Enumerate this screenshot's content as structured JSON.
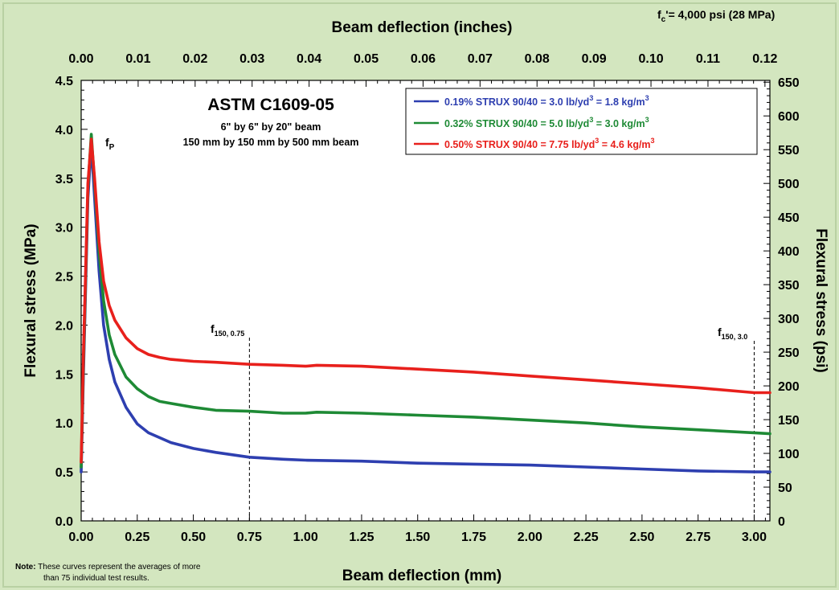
{
  "chart_data": {
    "type": "line",
    "title": "ASTM C1609-05",
    "subtitle_lines": [
      "6\" by 6\" by 20\" beam",
      "150 mm by 150 mm by 500 mm beam"
    ],
    "concrete_strength": {
      "main": "f",
      "sub": "c",
      "rest": "'= 4,000 psi (28 MPa)"
    },
    "x_bottom": {
      "label": "Beam deflection (mm)",
      "range": [
        0,
        3.07
      ],
      "ticks": [
        "0.00",
        "0.25",
        "0.50",
        "0.75",
        "1.00",
        "1.25",
        "1.50",
        "1.75",
        "2.00",
        "2.25",
        "2.50",
        "2.75",
        "3.00"
      ]
    },
    "x_top": {
      "label": "Beam deflection (inches)",
      "ticks": [
        "0.00",
        "0.01",
        "0.02",
        "0.03",
        "0.04",
        "0.05",
        "0.06",
        "0.07",
        "0.08",
        "0.09",
        "0.10",
        "0.11",
        "0.12"
      ]
    },
    "y_left": {
      "label": "Flexural stress (MPa)",
      "range": [
        0,
        4.5
      ],
      "ticks": [
        "0.0",
        "0.5",
        "1.0",
        "1.5",
        "2.0",
        "2.5",
        "3.0",
        "3.5",
        "4.0",
        "4.5"
      ]
    },
    "y_right": {
      "label": "Flexural stress (psi)",
      "ticks": [
        "0",
        "50",
        "100",
        "150",
        "200",
        "250",
        "300",
        "350",
        "400",
        "450",
        "500",
        "550",
        "600",
        "650"
      ]
    },
    "series": [
      {
        "legend": {
          "text": "0.19% STRUX 90/40 =  3.0 lb/yd",
          "sup": "3",
          "text2": " = 1.8 kg/m",
          "sup2": "3"
        },
        "color": "#2e3fb0",
        "points": [
          [
            0,
            0.5
          ],
          [
            0.01,
            1.5
          ],
          [
            0.03,
            3.3
          ],
          [
            0.045,
            3.85
          ],
          [
            0.06,
            3.3
          ],
          [
            0.08,
            2.55
          ],
          [
            0.1,
            2.0
          ],
          [
            0.125,
            1.65
          ],
          [
            0.15,
            1.42
          ],
          [
            0.2,
            1.16
          ],
          [
            0.25,
            0.99
          ],
          [
            0.3,
            0.9
          ],
          [
            0.4,
            0.8
          ],
          [
            0.5,
            0.74
          ],
          [
            0.6,
            0.7
          ],
          [
            0.75,
            0.65
          ],
          [
            0.9,
            0.63
          ],
          [
            1.0,
            0.62
          ],
          [
            1.25,
            0.61
          ],
          [
            1.5,
            0.59
          ],
          [
            1.75,
            0.58
          ],
          [
            2.0,
            0.57
          ],
          [
            2.25,
            0.55
          ],
          [
            2.5,
            0.53
          ],
          [
            2.75,
            0.51
          ],
          [
            3.0,
            0.5
          ],
          [
            3.07,
            0.5
          ]
        ]
      },
      {
        "legend": {
          "text": "0.32% STRUX 90/40 =  5.0 lb/yd",
          "sup": "3",
          "text2": " = 3.0 kg/m",
          "sup2": "3"
        },
        "color": "#1e8a35",
        "points": [
          [
            0,
            0.55
          ],
          [
            0.01,
            1.6
          ],
          [
            0.03,
            3.4
          ],
          [
            0.045,
            3.95
          ],
          [
            0.06,
            3.45
          ],
          [
            0.08,
            2.75
          ],
          [
            0.1,
            2.25
          ],
          [
            0.125,
            1.9
          ],
          [
            0.15,
            1.7
          ],
          [
            0.2,
            1.47
          ],
          [
            0.25,
            1.35
          ],
          [
            0.3,
            1.27
          ],
          [
            0.35,
            1.22
          ],
          [
            0.4,
            1.2
          ],
          [
            0.5,
            1.16
          ],
          [
            0.6,
            1.13
          ],
          [
            0.75,
            1.12
          ],
          [
            0.9,
            1.1
          ],
          [
            1.0,
            1.1
          ],
          [
            1.05,
            1.11
          ],
          [
            1.25,
            1.1
          ],
          [
            1.5,
            1.08
          ],
          [
            1.75,
            1.06
          ],
          [
            2.0,
            1.03
          ],
          [
            2.25,
            1.0
          ],
          [
            2.5,
            0.96
          ],
          [
            2.75,
            0.93
          ],
          [
            3.0,
            0.9
          ],
          [
            3.07,
            0.89
          ]
        ]
      },
      {
        "legend": {
          "text": "0.50% STRUX 90/40 =  7.75 lb/yd",
          "sup": "3",
          "text2": " = 4.6 kg/m",
          "sup2": "3"
        },
        "color": "#e8201c",
        "points": [
          [
            0,
            0.6
          ],
          [
            0.01,
            1.7
          ],
          [
            0.03,
            3.45
          ],
          [
            0.045,
            3.9
          ],
          [
            0.06,
            3.5
          ],
          [
            0.08,
            2.85
          ],
          [
            0.1,
            2.45
          ],
          [
            0.125,
            2.2
          ],
          [
            0.15,
            2.05
          ],
          [
            0.2,
            1.87
          ],
          [
            0.25,
            1.76
          ],
          [
            0.3,
            1.7
          ],
          [
            0.35,
            1.67
          ],
          [
            0.4,
            1.65
          ],
          [
            0.5,
            1.63
          ],
          [
            0.6,
            1.62
          ],
          [
            0.75,
            1.6
          ],
          [
            0.9,
            1.59
          ],
          [
            1.0,
            1.58
          ],
          [
            1.05,
            1.59
          ],
          [
            1.25,
            1.58
          ],
          [
            1.5,
            1.55
          ],
          [
            1.75,
            1.52
          ],
          [
            2.0,
            1.48
          ],
          [
            2.25,
            1.44
          ],
          [
            2.5,
            1.4
          ],
          [
            2.75,
            1.36
          ],
          [
            3.0,
            1.31
          ],
          [
            3.07,
            1.31
          ]
        ]
      }
    ],
    "annotations": {
      "fp": {
        "main": "f",
        "sub": "P",
        "x": 0.045,
        "y": 3.9
      },
      "f075": {
        "main": "f",
        "sub": "150, 0.75",
        "x": 0.75
      },
      "f30": {
        "main": "f",
        "sub": "150, 3.0",
        "x": 3.0
      }
    },
    "note": {
      "label": "Note:",
      "line1": " These curves represent the averages of more",
      "line2": "than 75 individual test results."
    },
    "grid": false,
    "legend_position": "top-right"
  },
  "colors": {
    "background": "#d3e6bf",
    "plot_bg": "#ffffff",
    "axis": "#000000"
  }
}
